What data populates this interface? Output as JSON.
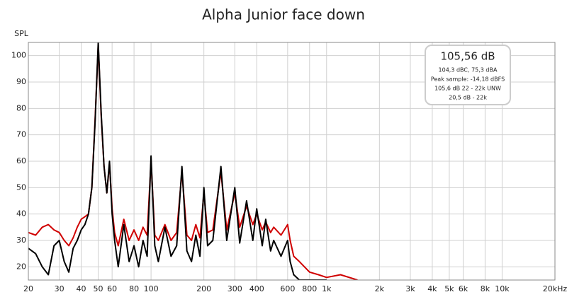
{
  "chart_data": {
    "type": "line",
    "title": "Alpha Junior face down",
    "y_label": "SPL",
    "log_x": true,
    "grid": true,
    "xlim": [
      20,
      20000
    ],
    "ylim": [
      15,
      105
    ],
    "yticks": [
      20,
      30,
      40,
      50,
      60,
      70,
      80,
      90,
      100
    ],
    "xticks": [
      20,
      30,
      40,
      50,
      60,
      80,
      100,
      200,
      300,
      400,
      600,
      800,
      {
        "value": 1000,
        "label": "1k"
      },
      {
        "value": 2000,
        "label": "2k"
      },
      {
        "value": 3000,
        "label": "3k"
      },
      {
        "value": 4000,
        "label": "4k"
      },
      {
        "value": 5000,
        "label": "5k"
      },
      {
        "value": 6000,
        "label": "6k"
      },
      {
        "value": 8000,
        "label": "8k"
      },
      {
        "value": 10000,
        "label": "10k"
      },
      {
        "value": 20000,
        "label": "20kHz"
      }
    ],
    "x": [
      20,
      22,
      24,
      26,
      28,
      30,
      32,
      34,
      36,
      38,
      40,
      42,
      44,
      46,
      48,
      50,
      52,
      54,
      56,
      58,
      60,
      62,
      65,
      70,
      75,
      80,
      85,
      90,
      95,
      100,
      105,
      110,
      120,
      130,
      140,
      150,
      160,
      170,
      180,
      190,
      200,
      210,
      225,
      250,
      270,
      300,
      320,
      350,
      380,
      400,
      430,
      450,
      480,
      500,
      550,
      600,
      620,
      650,
      700,
      800,
      900,
      1000,
      1200,
      1500
    ],
    "series": [
      {
        "color": "#d00000",
        "values": [
          33,
          32,
          35,
          36,
          34,
          33,
          30,
          28,
          31,
          35,
          38,
          39,
          40,
          50,
          76,
          104,
          77,
          58,
          48,
          59,
          42,
          33,
          28,
          38,
          30,
          34,
          30,
          35,
          32,
          60,
          32,
          30,
          36,
          30,
          33,
          56,
          32,
          30,
          36,
          31,
          48,
          33,
          34,
          56,
          34,
          48,
          35,
          43,
          36,
          40,
          34,
          37,
          33,
          35,
          32,
          36,
          30,
          24,
          22,
          18,
          17,
          16,
          17,
          15
        ]
      },
      {
        "color": "#000000",
        "values": [
          27,
          25,
          20,
          17,
          28,
          30,
          22,
          18,
          27,
          30,
          34,
          36,
          40,
          50,
          75,
          105,
          78,
          58,
          48,
          60,
          40,
          30,
          20,
          36,
          22,
          28,
          20,
          30,
          24,
          62,
          28,
          22,
          35,
          24,
          28,
          58,
          26,
          22,
          32,
          24,
          50,
          28,
          30,
          58,
          30,
          50,
          29,
          45,
          30,
          42,
          28,
          38,
          26,
          30,
          24,
          30,
          22,
          17,
          15,
          15,
          15,
          15,
          null,
          null
        ]
      }
    ],
    "annotation": {
      "headline": "105,56 dB",
      "lines": [
        "104,3 dBC, 75,3 dBA",
        "Peak sample: -14,18 dBFS",
        "105,6 dB 22 - 22k UNW",
        "20,5 dB - 22k"
      ]
    }
  }
}
